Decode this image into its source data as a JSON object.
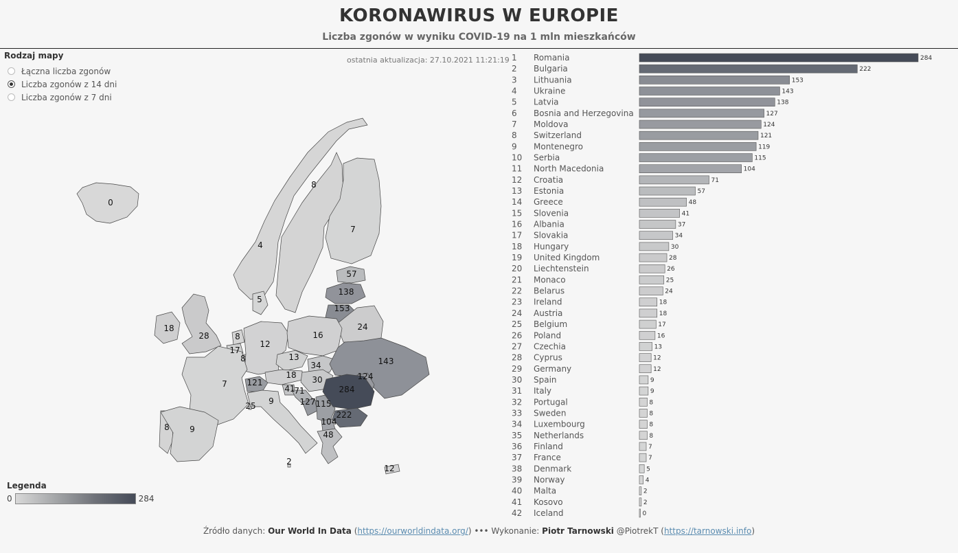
{
  "header": {
    "title": "KORONAWIRUS W EUROPIE",
    "subtitle": "Liczba zgonów w wyniku COVID-19 na 1 mln mieszkańców"
  },
  "map_type": {
    "label": "Rodzaj mapy",
    "options": [
      {
        "label": "Łączna liczba zgonów",
        "selected": false
      },
      {
        "label": "Liczba zgonów z 14 dni",
        "selected": true
      },
      {
        "label": "Liczba zgonów z 7 dni",
        "selected": false
      }
    ]
  },
  "last_update": "ostatnia aktualizacja: 27.10.2021 11:21:19",
  "legend": {
    "label": "Legenda",
    "min": "0",
    "max": "284"
  },
  "colors": {
    "min": "#d8d8d8",
    "max": "#454b58",
    "background": "#f6f6f6",
    "bar_border": "#555555"
  },
  "map_labels": [
    {
      "country": "Iceland",
      "value": 0
    },
    {
      "country": "Norway",
      "value": 4
    },
    {
      "country": "Sweden",
      "value": 8
    },
    {
      "country": "Finland",
      "value": 7
    },
    {
      "country": "Estonia",
      "value": 57
    },
    {
      "country": "Latvia",
      "value": 138
    },
    {
      "country": "Lithuania",
      "value": 153
    },
    {
      "country": "Denmark",
      "value": 5
    },
    {
      "country": "Ireland",
      "value": 18
    },
    {
      "country": "United Kingdom",
      "value": 28
    },
    {
      "country": "Netherlands",
      "value": 8
    },
    {
      "country": "Belgium",
      "value": 17
    },
    {
      "country": "Luxembourg",
      "value": 8
    },
    {
      "country": "Germany",
      "value": 12
    },
    {
      "country": "Poland",
      "value": 16
    },
    {
      "country": "Belarus",
      "value": 24
    },
    {
      "country": "Ukraine",
      "value": 143
    },
    {
      "country": "Moldova",
      "value": 124
    },
    {
      "country": "Czechia",
      "value": 13
    },
    {
      "country": "Slovakia",
      "value": 34
    },
    {
      "country": "Austria",
      "value": 18
    },
    {
      "country": "Hungary",
      "value": 30
    },
    {
      "country": "Switzerland",
      "value": 121
    },
    {
      "country": "France",
      "value": 7
    },
    {
      "country": "Slovenia",
      "value": 41
    },
    {
      "country": "Croatia",
      "value": 71
    },
    {
      "country": "Bosnia and Herzegovina",
      "value": 127
    },
    {
      "country": "Serbia",
      "value": 115
    },
    {
      "country": "Romania",
      "value": 284
    },
    {
      "country": "Bulgaria",
      "value": 222
    },
    {
      "country": "North Macedonia",
      "value": 104
    },
    {
      "country": "Greece",
      "value": 48
    },
    {
      "country": "Italy",
      "value": 9
    },
    {
      "country": "Monaco",
      "value": 25
    },
    {
      "country": "Portugal",
      "value": 8
    },
    {
      "country": "Spain",
      "value": 9
    },
    {
      "country": "Malta",
      "value": 2
    },
    {
      "country": "Cyprus",
      "value": 12
    }
  ],
  "chart_data": {
    "type": "bar",
    "orientation": "horizontal",
    "title": "Liczba zgonów w wyniku COVID-19 na 1 mln mieszkańców",
    "ranks": [
      1,
      2,
      3,
      4,
      5,
      6,
      7,
      8,
      9,
      10,
      11,
      12,
      13,
      14,
      15,
      16,
      17,
      18,
      19,
      20,
      21,
      22,
      23,
      24,
      25,
      26,
      27,
      28,
      29,
      30,
      31,
      32,
      33,
      34,
      35,
      36,
      37,
      38,
      39,
      40,
      41,
      42
    ],
    "categories": [
      "Romania",
      "Bulgaria",
      "Lithuania",
      "Ukraine",
      "Latvia",
      "Bosnia and Herzegovina",
      "Moldova",
      "Switzerland",
      "Montenegro",
      "Serbia",
      "North Macedonia",
      "Croatia",
      "Estonia",
      "Greece",
      "Slovenia",
      "Albania",
      "Slovakia",
      "Hungary",
      "United Kingdom",
      "Liechtenstein",
      "Monaco",
      "Belarus",
      "Ireland",
      "Austria",
      "Belgium",
      "Poland",
      "Czechia",
      "Cyprus",
      "Germany",
      "Spain",
      "Italy",
      "Portugal",
      "Sweden",
      "Luxembourg",
      "Netherlands",
      "Finland",
      "France",
      "Denmark",
      "Norway",
      "Malta",
      "Kosovo",
      "Iceland"
    ],
    "values": [
      284,
      222,
      153,
      143,
      138,
      127,
      124,
      121,
      119,
      115,
      104,
      71,
      57,
      48,
      41,
      37,
      34,
      30,
      28,
      26,
      25,
      24,
      18,
      18,
      17,
      16,
      13,
      12,
      12,
      9,
      9,
      8,
      8,
      8,
      8,
      7,
      7,
      5,
      4,
      2,
      2,
      0
    ],
    "xlim": [
      0,
      284
    ],
    "data_labels": true,
    "grid": false,
    "color_scale": [
      "#d8d8d8",
      "#454b58"
    ]
  },
  "footer": {
    "source_label": "Źródło danych: ",
    "source_name": "Our World In Data",
    "source_url": "https://ourworldindata.org/",
    "dots": "•••",
    "author_label": "Wykonanie: ",
    "author_name": "Piotr Tarnowski",
    "handle": "@PiotrekT",
    "author_url": "https://tarnowski.info"
  }
}
